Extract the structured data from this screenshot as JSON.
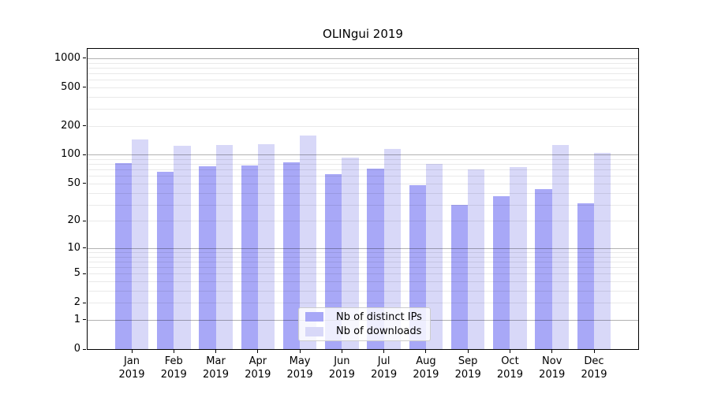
{
  "title": "OLINgui 2019",
  "chart_data": {
    "type": "bar",
    "title": "OLINgui 2019",
    "categories": [
      "Jan",
      "Feb",
      "Mar",
      "Apr",
      "May",
      "Jun",
      "Jul",
      "Aug",
      "Sep",
      "Oct",
      "Nov",
      "Dec"
    ],
    "category_year": "2019",
    "series": [
      {
        "name": "Nb of distinct IPs",
        "color": "#a8a8f7",
        "values": [
          82,
          66,
          76,
          78,
          83,
          63,
          72,
          48,
          30,
          37,
          44,
          31
        ]
      },
      {
        "name": "Nb of downloads",
        "color": "#d8d8f8",
        "values": [
          143,
          125,
          126,
          128,
          160,
          93,
          116,
          80,
          70,
          75,
          127,
          104
        ]
      }
    ],
    "yscale": "log(x+1)",
    "ylim": [
      0,
      1250
    ],
    "yticks": [
      0,
      1,
      2,
      5,
      10,
      20,
      50,
      100,
      200,
      500,
      1000
    ],
    "grid": true,
    "legend_position": "lower center",
    "colors": {
      "bar_dark": "#a8a8f7",
      "bar_light": "#d8d8f8",
      "grid_major": "#b5b5b5",
      "grid_minor": "#e9e9e9",
      "spine": "#000000",
      "legend_border": "#cccccc"
    }
  }
}
